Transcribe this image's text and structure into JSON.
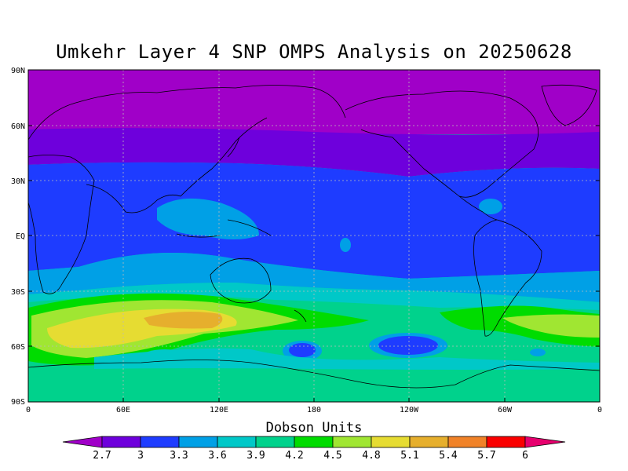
{
  "title": "Umkehr Layer 4 SNP OMPS Analysis on 20250628",
  "lat_labels": [
    "90N",
    "60N",
    "30N",
    "EQ",
    "30S",
    "60S",
    "90S"
  ],
  "lon_labels": [
    "0",
    "60E",
    "120E",
    "180",
    "120W",
    "60W",
    "0"
  ],
  "colorbar": {
    "title": "Dobson Units",
    "levels": [
      "2.7",
      "3",
      "3.3",
      "3.6",
      "3.9",
      "4.2",
      "4.5",
      "4.8",
      "5.1",
      "5.4",
      "5.7",
      "6"
    ],
    "colors": [
      "#a000c8",
      "#6e00dc",
      "#1e3cff",
      "#00a0e6",
      "#00c8c8",
      "#00d28c",
      "#00dc00",
      "#a0e632",
      "#e6dc32",
      "#e6af2d",
      "#f08228",
      "#fa0000",
      "#e6006e"
    ]
  }
}
